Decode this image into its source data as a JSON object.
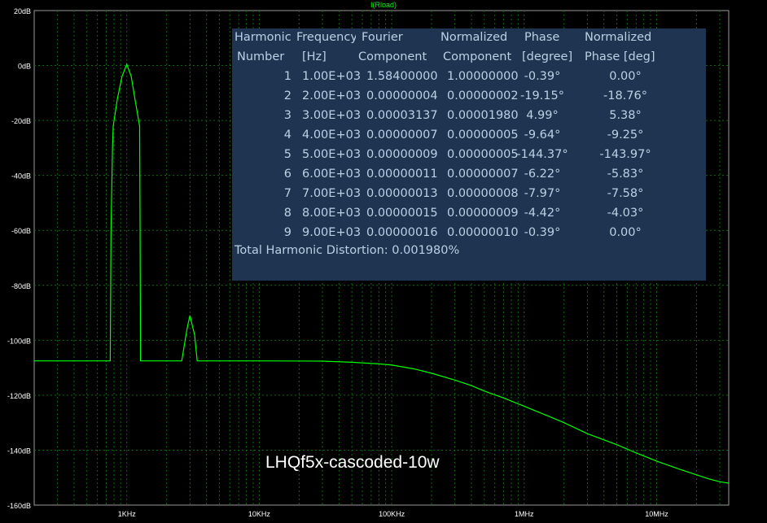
{
  "trace_title": "I(Rload)",
  "annotation": "LHQf5x-cascoded-10w",
  "colors": {
    "background": "#000000",
    "trace": "#00ff00",
    "grid": "#0f6a0f",
    "axis_text": "#ffffff",
    "panel_bg": "#1f3450",
    "panel_text": "#bcd0e4"
  },
  "chart_data": {
    "type": "line",
    "title": "I(Rload)",
    "x_scale": "log",
    "x_unit": "Hz",
    "xlim": [
      200,
      35000000
    ],
    "ylim": [
      -160,
      20
    ],
    "grid": true,
    "x_tick_labels": [
      {
        "value": 1000,
        "label": "1KHz"
      },
      {
        "value": 10000,
        "label": "10KHz"
      },
      {
        "value": 100000,
        "label": "100KHz"
      },
      {
        "value": 1000000,
        "label": "1MHz"
      },
      {
        "value": 10000000,
        "label": "10MHz"
      }
    ],
    "y_ticks": [
      20,
      0,
      -20,
      -40,
      -60,
      -80,
      -100,
      -120,
      -140,
      -160
    ],
    "y_tick_labels": [
      "20dB",
      "0dB",
      "-20dB",
      "-40dB",
      "-60dB",
      "-80dB",
      "-100dB",
      "-120dB",
      "-140dB",
      "-160dB"
    ],
    "series": [
      {
        "points": [
          [
            200,
            -107.5
          ],
          [
            750,
            -107.5
          ],
          [
            760,
            -60
          ],
          [
            780,
            -30
          ],
          [
            790,
            -22
          ],
          [
            850,
            -12
          ],
          [
            920,
            -4
          ],
          [
            1000,
            0.5
          ],
          [
            1080,
            -4
          ],
          [
            1150,
            -12
          ],
          [
            1250,
            -22
          ],
          [
            1260,
            -60
          ],
          [
            1270,
            -107.5
          ],
          [
            2600,
            -107.5
          ],
          [
            2800,
            -98
          ],
          [
            2900,
            -94
          ],
          [
            3000,
            -91
          ],
          [
            3100,
            -94
          ],
          [
            3250,
            -98
          ],
          [
            3400,
            -107.5
          ],
          [
            10000,
            -107.5
          ],
          [
            30000,
            -107.6
          ],
          [
            50000,
            -108
          ],
          [
            80000,
            -108.6
          ],
          [
            100000,
            -109
          ],
          [
            150000,
            -110.5
          ],
          [
            200000,
            -112
          ],
          [
            300000,
            -114.5
          ],
          [
            400000,
            -116.5
          ],
          [
            500000,
            -118.5
          ],
          [
            700000,
            -121
          ],
          [
            1000000,
            -124
          ],
          [
            1500000,
            -127.5
          ],
          [
            2000000,
            -130
          ],
          [
            3000000,
            -134
          ],
          [
            5000000,
            -138
          ],
          [
            7000000,
            -141
          ],
          [
            10000000,
            -144
          ],
          [
            15000000,
            -147
          ],
          [
            20000000,
            -149
          ],
          [
            25000000,
            -150.5
          ],
          [
            30000000,
            -151.5
          ],
          [
            35000000,
            -152
          ]
        ]
      }
    ]
  },
  "fourier": {
    "headers_top": [
      "Harmonic",
      "Frequency",
      "Fourier",
      "Normalized",
      "Phase",
      "Normalized"
    ],
    "headers_bottom": [
      "Number",
      "[Hz]",
      "Component",
      "Component",
      "[degree]",
      "Phase [deg]"
    ],
    "rows": [
      [
        "1",
        "1.00E+03",
        "1.58400000",
        "1.00000000",
        "-0.39°",
        "0.00°"
      ],
      [
        "2",
        "2.00E+03",
        "0.00000004",
        "0.00000002",
        "-19.15°",
        "-18.76°"
      ],
      [
        "3",
        "3.00E+03",
        "0.00003137",
        "0.00001980",
        "4.99°",
        "5.38°"
      ],
      [
        "4",
        "4.00E+03",
        "0.00000007",
        "0.00000005",
        "-9.64°",
        "-9.25°"
      ],
      [
        "5",
        "5.00E+03",
        "0.00000009",
        "0.00000005",
        "-144.37°",
        "-143.97°"
      ],
      [
        "6",
        "6.00E+03",
        "0.00000011",
        "0.00000007",
        "-6.22°",
        "-5.83°"
      ],
      [
        "7",
        "7.00E+03",
        "0.00000013",
        "0.00000008",
        "-7.97°",
        "-7.58°"
      ],
      [
        "8",
        "8.00E+03",
        "0.00000015",
        "0.00000009",
        "-4.42°",
        "-4.03°"
      ],
      [
        "9",
        "9.00E+03",
        "0.00000016",
        "0.00000010",
        "-0.39°",
        "0.00°"
      ]
    ],
    "thd": "Total Harmonic Distortion: 0.001980%"
  }
}
